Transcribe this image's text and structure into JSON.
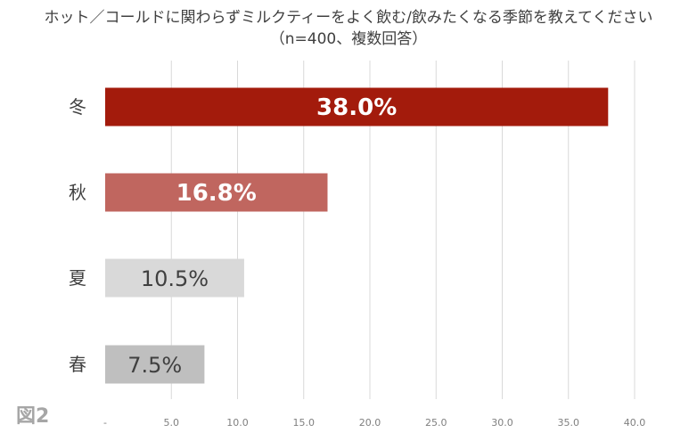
{
  "title_line1": "ホット／コールドに関わらずミルクティーをよく飲む/飲みたくなる季節を教えてください",
  "title_line2": "（n=400、複数回答）",
  "figure_label": "図2",
  "chart_data": {
    "type": "bar",
    "orientation": "horizontal",
    "categories": [
      "冬",
      "秋",
      "夏",
      "春"
    ],
    "values": [
      38.0,
      16.8,
      10.5,
      7.5
    ],
    "value_labels": [
      "38.0%",
      "16.8%",
      "10.5%",
      "7.5%"
    ],
    "bar_colors": [
      "#a31b0c",
      "#c0665f",
      "#d9d9d9",
      "#bfbfbf"
    ],
    "label_colors": [
      "#ffffff",
      "#ffffff",
      "#404040",
      "#404040"
    ],
    "xlim": [
      0,
      40
    ],
    "x_ticks": [
      "-",
      "5.0",
      "10.0",
      "15.0",
      "20.0",
      "25.0",
      "30.0",
      "35.0",
      "40.0"
    ],
    "x_tick_values": [
      0,
      5,
      10,
      15,
      20,
      25,
      30,
      35,
      40
    ],
    "grid": true
  }
}
